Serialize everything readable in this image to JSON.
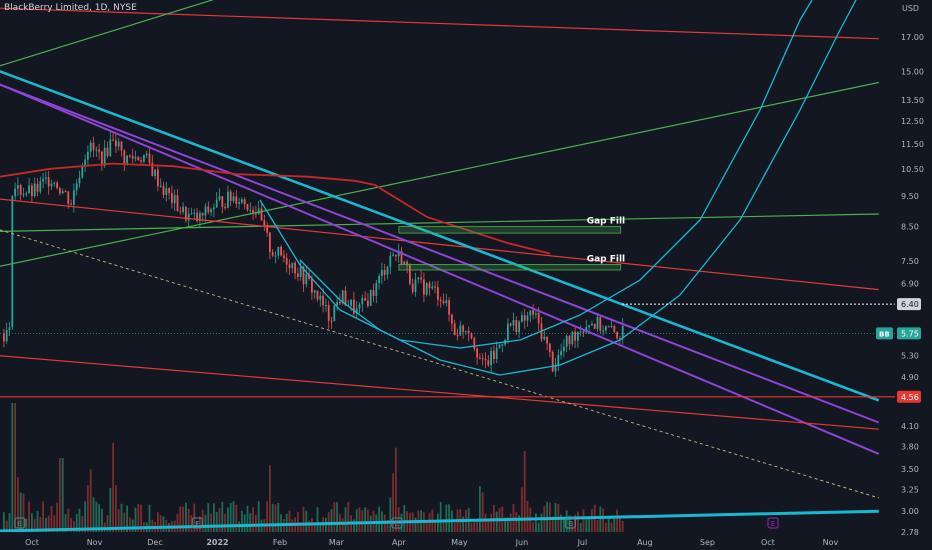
{
  "header": {
    "title": "BlackBerry Limited, 1D, NYSE"
  },
  "currency": "USD",
  "colors": {
    "background": "#131722",
    "up": "#26a69a",
    "down": "#ef5350",
    "volume_up": "#1e6b55",
    "volume_down": "#7a2d2d",
    "cyan": "#19b8d1",
    "purple": "#8e44d6",
    "red_line": "#e53935",
    "green_line": "#4caf50"
  },
  "price_labels": {
    "last_symbol": "BB",
    "last_price": "5.75",
    "marker_price": "6.40",
    "red_level": "4.56"
  },
  "annotations": [
    {
      "text": "Gap Fill"
    },
    {
      "text": "Gap Fill"
    }
  ],
  "chart_data": {
    "type": "candlestick",
    "title": "BlackBerry Limited, 1D, NYSE",
    "x_tick_labels": [
      "Oct",
      "Nov",
      "Dec",
      "2022",
      "Feb",
      "Mar",
      "Apr",
      "May",
      "Jun",
      "Jul",
      "Aug",
      "Sep",
      "Oct",
      "Nov"
    ],
    "y_tick_labels": [
      "17.00",
      "15.00",
      "13.50",
      "12.50",
      "11.50",
      "10.50",
      "9.50",
      "8.50",
      "7.50",
      "6.90",
      "6.40",
      "5.75",
      "5.30",
      "4.90",
      "4.56",
      "4.10",
      "3.80",
      "3.50",
      "3.25",
      "3.00",
      "2.78"
    ],
    "y_scale": "log",
    "ylim": [
      2.7,
      18.5
    ],
    "price_path": [
      [
        "2021-09-20",
        9.8
      ],
      [
        "2021-10-01",
        9.6
      ],
      [
        "2021-10-10",
        10.2
      ],
      [
        "2021-10-20",
        9.3
      ],
      [
        "2021-10-28",
        11.4
      ],
      [
        "2021-11-05",
        10.9
      ],
      [
        "2021-11-10",
        11.9
      ],
      [
        "2021-11-15",
        10.9
      ],
      [
        "2021-11-25",
        11.0
      ],
      [
        "2021-12-05",
        9.7
      ],
      [
        "2021-12-15",
        8.9
      ],
      [
        "2021-12-22",
        8.7
      ],
      [
        "2022-01-01",
        9.3
      ],
      [
        "2022-01-10",
        9.5
      ],
      [
        "2022-01-20",
        9.0
      ],
      [
        "2022-01-27",
        7.8
      ],
      [
        "2022-02-05",
        7.5
      ],
      [
        "2022-02-15",
        6.9
      ],
      [
        "2022-02-25",
        6.1
      ],
      [
        "2022-03-03",
        6.6
      ],
      [
        "2022-03-11",
        6.2
      ],
      [
        "2022-03-20",
        6.8
      ],
      [
        "2022-03-28",
        7.7
      ],
      [
        "2022-04-02",
        7.6
      ],
      [
        "2022-04-07",
        6.9
      ],
      [
        "2022-04-15",
        6.8
      ],
      [
        "2022-04-22",
        6.6
      ],
      [
        "2022-04-28",
        5.8
      ],
      [
        "2022-05-05",
        5.9
      ],
      [
        "2022-05-12",
        5.1
      ],
      [
        "2022-05-18",
        5.3
      ],
      [
        "2022-05-25",
        5.9
      ],
      [
        "2022-06-01",
        6.0
      ],
      [
        "2022-06-06",
        6.2
      ],
      [
        "2022-06-12",
        5.6
      ],
      [
        "2022-06-16",
        5.1
      ],
      [
        "2022-06-22",
        5.5
      ],
      [
        "2022-06-28",
        5.8
      ],
      [
        "2022-07-04",
        6.0
      ],
      [
        "2022-07-10",
        5.9
      ],
      [
        "2022-07-16",
        5.75
      ]
    ],
    "volume_peak_dates": [
      "2021-09-25",
      "2021-10-29",
      "2021-11-10",
      "2022-01-27",
      "2022-03-30",
      "2022-05-12",
      "2022-06-02"
    ],
    "trendlines": [
      {
        "color": "red",
        "p1": [
          "2021-09-15",
          18.9
        ],
        "p2": [
          "2022-11-25",
          16.9
        ]
      },
      {
        "color": "green",
        "p1": [
          "2021-09-15",
          15.3
        ],
        "p2": [
          "2022-01-10",
          20.0
        ]
      },
      {
        "color": "green",
        "p1": [
          "2021-09-15",
          7.35
        ],
        "p2": [
          "2022-11-25",
          14.4
        ]
      },
      {
        "color": "green",
        "p1": [
          "2021-09-15",
          8.35
        ],
        "p2": [
          "2022-11-25",
          8.9
        ]
      },
      {
        "color": "red",
        "p1": [
          "2021-09-15",
          9.4
        ],
        "p2": [
          "2022-11-25",
          6.75
        ]
      },
      {
        "color": "cyan",
        "p1": [
          "2021-09-15",
          15.0
        ],
        "p2": [
          "2022-11-25",
          4.5
        ]
      },
      {
        "color": "purple",
        "p1": [
          "2021-09-15",
          14.3
        ],
        "p2": [
          "2022-11-25",
          3.7
        ]
      },
      {
        "color": "purple",
        "p1": [
          "2021-09-15",
          14.3
        ],
        "p2": [
          "2022-11-25",
          4.15
        ]
      },
      {
        "color": "red",
        "p1": [
          "2021-09-15",
          5.3
        ],
        "p2": [
          "2022-11-25",
          4.05
        ]
      },
      {
        "color": "dashed",
        "p1": [
          "2021-09-15",
          8.4
        ],
        "p2": [
          "2022-11-25",
          3.15
        ]
      },
      {
        "color": "red",
        "horizontal": 4.56
      },
      {
        "color": "cyan",
        "p1": [
          "2021-09-15",
          2.79
        ],
        "p2": [
          "2022-11-25",
          3.0
        ]
      }
    ],
    "moving_average": [
      [
        "2021-09-15",
        10.2
      ],
      [
        "2021-10-10",
        10.5
      ],
      [
        "2021-11-10",
        10.7
      ],
      [
        "2021-12-10",
        10.6
      ],
      [
        "2022-01-10",
        10.3
      ],
      [
        "2022-02-15",
        10.2
      ],
      [
        "2022-03-10",
        10.05
      ],
      [
        "2022-03-20",
        9.9
      ],
      [
        "2022-04-15",
        8.8
      ],
      [
        "2022-05-25",
        8.0
      ],
      [
        "2022-06-15",
        7.7
      ]
    ],
    "gap_fill_zones": [
      {
        "label": "Gap Fill",
        "from": "2022-04-01",
        "to": "2022-07-20",
        "low": 8.3,
        "high": 8.5
      },
      {
        "label": "Gap Fill",
        "from": "2022-04-01",
        "to": "2022-07-20",
        "low": 7.25,
        "high": 7.4
      }
    ]
  }
}
